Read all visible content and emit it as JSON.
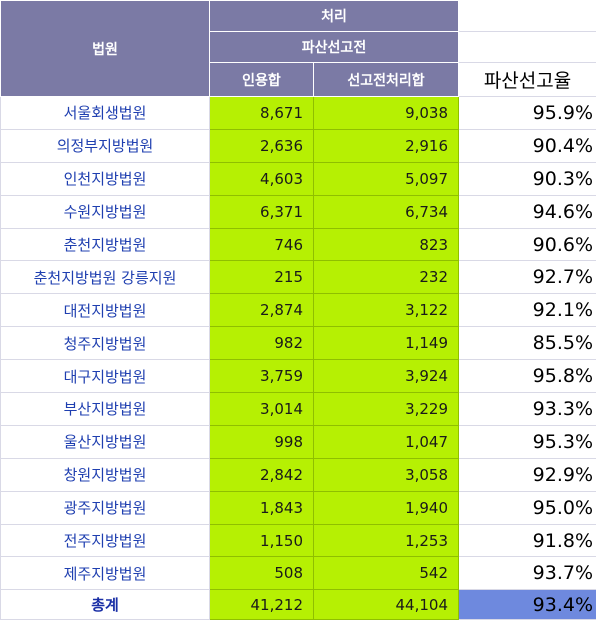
{
  "header": {
    "court": "법원",
    "processing": "처리",
    "bankruptcy_declaration": "파산선고전",
    "approved_sum": "인용합",
    "processed_sum": "선고전처리합",
    "rate": "파산선고율"
  },
  "rows": [
    {
      "court": "서울회생법원",
      "approved": "8,671",
      "processed": "9,038",
      "rate": "95.9%"
    },
    {
      "court": "의정부지방법원",
      "approved": "2,636",
      "processed": "2,916",
      "rate": "90.4%"
    },
    {
      "court": "인천지방법원",
      "approved": "4,603",
      "processed": "5,097",
      "rate": "90.3%"
    },
    {
      "court": "수원지방법원",
      "approved": "6,371",
      "processed": "6,734",
      "rate": "94.6%"
    },
    {
      "court": "춘천지방법원",
      "approved": "746",
      "processed": "823",
      "rate": "90.6%"
    },
    {
      "court": "춘천지방법원 강릉지원",
      "approved": "215",
      "processed": "232",
      "rate": "92.7%"
    },
    {
      "court": "대전지방법원",
      "approved": "2,874",
      "processed": "3,122",
      "rate": "92.1%"
    },
    {
      "court": "청주지방법원",
      "approved": "982",
      "processed": "1,149",
      "rate": "85.5%"
    },
    {
      "court": "대구지방법원",
      "approved": "3,759",
      "processed": "3,924",
      "rate": "95.8%"
    },
    {
      "court": "부산지방법원",
      "approved": "3,014",
      "processed": "3,229",
      "rate": "93.3%"
    },
    {
      "court": "울산지방법원",
      "approved": "998",
      "processed": "1,047",
      "rate": "95.3%"
    },
    {
      "court": "창원지방법원",
      "approved": "2,842",
      "processed": "3,058",
      "rate": "92.9%"
    },
    {
      "court": "광주지방법원",
      "approved": "1,843",
      "processed": "1,940",
      "rate": "95.0%"
    },
    {
      "court": "전주지방법원",
      "approved": "1,150",
      "processed": "1,253",
      "rate": "91.8%"
    },
    {
      "court": "제주지방법원",
      "approved": "508",
      "processed": "542",
      "rate": "93.7%"
    }
  ],
  "total": {
    "court": "총계",
    "approved": "41,212",
    "processed": "44,104",
    "rate": "93.4%"
  },
  "colors": {
    "header_bg": "#7b7aa5",
    "value_bg": "#b6f003",
    "court_text": "#1f3fb0",
    "total_rate_bg": "#6e89de"
  }
}
